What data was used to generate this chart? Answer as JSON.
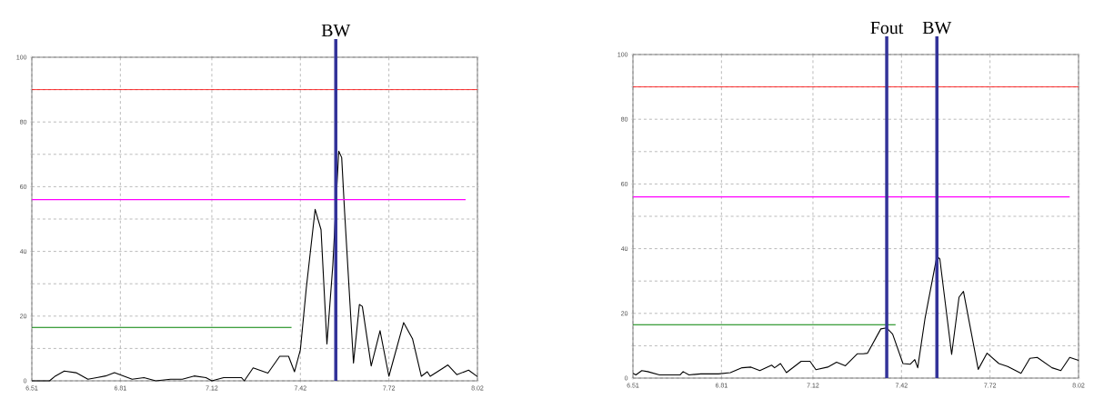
{
  "chart_data": [
    {
      "type": "line",
      "xlim": [
        6.51,
        8.02
      ],
      "ylim": [
        0,
        100
      ],
      "xticks": [
        6.51,
        6.81,
        7.12,
        7.42,
        7.72,
        8.02
      ],
      "yticks": [
        0,
        {
          "value": 10,
          "label": null
        },
        20,
        {
          "value": 30,
          "label": null
        },
        40,
        {
          "value": 50,
          "label": null
        },
        60,
        {
          "value": 70,
          "label": null
        },
        80,
        {
          "value": 90,
          "label": null
        },
        100
      ],
      "grid": true,
      "series": [
        {
          "color": "#000000",
          "x": [
            6.51,
            6.525,
            6.57,
            6.59,
            6.62,
            6.66,
            6.7,
            6.73,
            6.76,
            6.79,
            6.82,
            6.85,
            6.89,
            6.93,
            6.98,
            7.02,
            7.06,
            7.1,
            7.12,
            7.16,
            7.22,
            7.23,
            7.26,
            7.31,
            7.35,
            7.38,
            7.4,
            7.42,
            7.44,
            7.47,
            7.49,
            7.51,
            7.53,
            7.55,
            7.56,
            7.57,
            7.6,
            7.62,
            7.63,
            7.66,
            7.69,
            7.72,
            7.77,
            7.8,
            7.83,
            7.85,
            7.86,
            7.9,
            7.92,
            7.95,
            7.99,
            8.02
          ],
          "values": [
            0,
            0,
            0,
            1.5,
            3,
            2.5,
            0.5,
            1,
            1.5,
            2.5,
            1.5,
            0.5,
            1,
            0,
            0.5,
            0.5,
            1.5,
            1,
            0,
            1,
            1,
            0,
            4,
            2.4,
            7.6,
            7.6,
            2.8,
            9.6,
            28.6,
            53,
            46.7,
            11.4,
            35.8,
            71,
            69,
            52,
            5.5,
            23.6,
            23,
            4.6,
            15.5,
            1.4,
            18,
            13,
            1.4,
            2.8,
            1.4,
            3.7,
            4.9,
            1.9,
            3.3,
            1.3
          ]
        },
        {
          "color": "#008000",
          "x": [
            6.51,
            7.39
          ],
          "values": [
            16.5,
            16.5
          ]
        },
        {
          "color": "#ff00ff",
          "x": [
            6.51,
            7.98
          ],
          "values": [
            56,
            56
          ]
        }
      ],
      "ref_lines": [
        {
          "axis": "y",
          "value": 90,
          "label": null,
          "color": "#ff0000"
        },
        {
          "axis": "x",
          "value": 7.54,
          "label": "BW",
          "color": "#333399"
        }
      ]
    },
    {
      "type": "line",
      "xlim": [
        6.51,
        8.02
      ],
      "ylim": [
        0,
        100
      ],
      "xticks": [
        6.51,
        6.81,
        7.12,
        7.42,
        7.72,
        8.02
      ],
      "yticks": [
        0,
        {
          "value": 10,
          "label": null
        },
        20,
        {
          "value": 30,
          "label": null
        },
        40,
        {
          "value": 50,
          "label": null
        },
        60,
        {
          "value": 70,
          "label": null
        },
        80,
        {
          "value": 90,
          "label": null
        },
        100
      ],
      "grid": true,
      "series": [
        {
          "color": "#000000",
          "x": [
            6.51,
            6.52,
            6.54,
            6.56,
            6.6,
            6.67,
            6.68,
            6.7,
            6.74,
            6.8,
            6.84,
            6.88,
            6.91,
            6.94,
            6.98,
            6.99,
            7.01,
            7.03,
            7.08,
            7.11,
            7.13,
            7.17,
            7.2,
            7.23,
            7.27,
            7.29,
            7.305,
            7.35,
            7.37,
            7.39,
            7.425,
            7.45,
            7.465,
            7.475,
            7.5,
            7.54,
            7.55,
            7.59,
            7.615,
            7.63,
            7.68,
            7.71,
            7.75,
            7.78,
            7.825,
            7.855,
            7.88,
            7.93,
            7.96,
            7.99,
            8.02
          ],
          "values": [
            1.5,
            1,
            2.3,
            2,
            1,
            1,
            2,
            1,
            1.3,
            1.3,
            1.7,
            3.2,
            3.4,
            2.3,
            4,
            3.2,
            4.5,
            1.7,
            5.2,
            5.2,
            2.6,
            3.4,
            4.9,
            3.8,
            7.5,
            7.5,
            7.7,
            15.2,
            15.5,
            13.6,
            4.5,
            4.3,
            5.7,
            3.2,
            18.6,
            37.7,
            36.8,
            7.3,
            25,
            26.8,
            2.7,
            7.7,
            4.5,
            3.6,
            1.5,
            6.1,
            6.4,
            3.2,
            2.3,
            6.4,
            5.5
          ]
        },
        {
          "color": "#008000",
          "x": [
            6.51,
            7.4
          ],
          "values": [
            16.5,
            16.5
          ]
        },
        {
          "color": "#ff00ff",
          "x": [
            6.51,
            7.99
          ],
          "values": [
            56,
            56
          ]
        }
      ],
      "ref_lines": [
        {
          "axis": "y",
          "value": 90,
          "label": null,
          "color": "#ff0000"
        },
        {
          "axis": "x",
          "value": 7.37,
          "label": "Fout",
          "color": "#333399"
        },
        {
          "axis": "x",
          "value": 7.54,
          "label": "BW",
          "color": "#333399"
        }
      ]
    }
  ]
}
